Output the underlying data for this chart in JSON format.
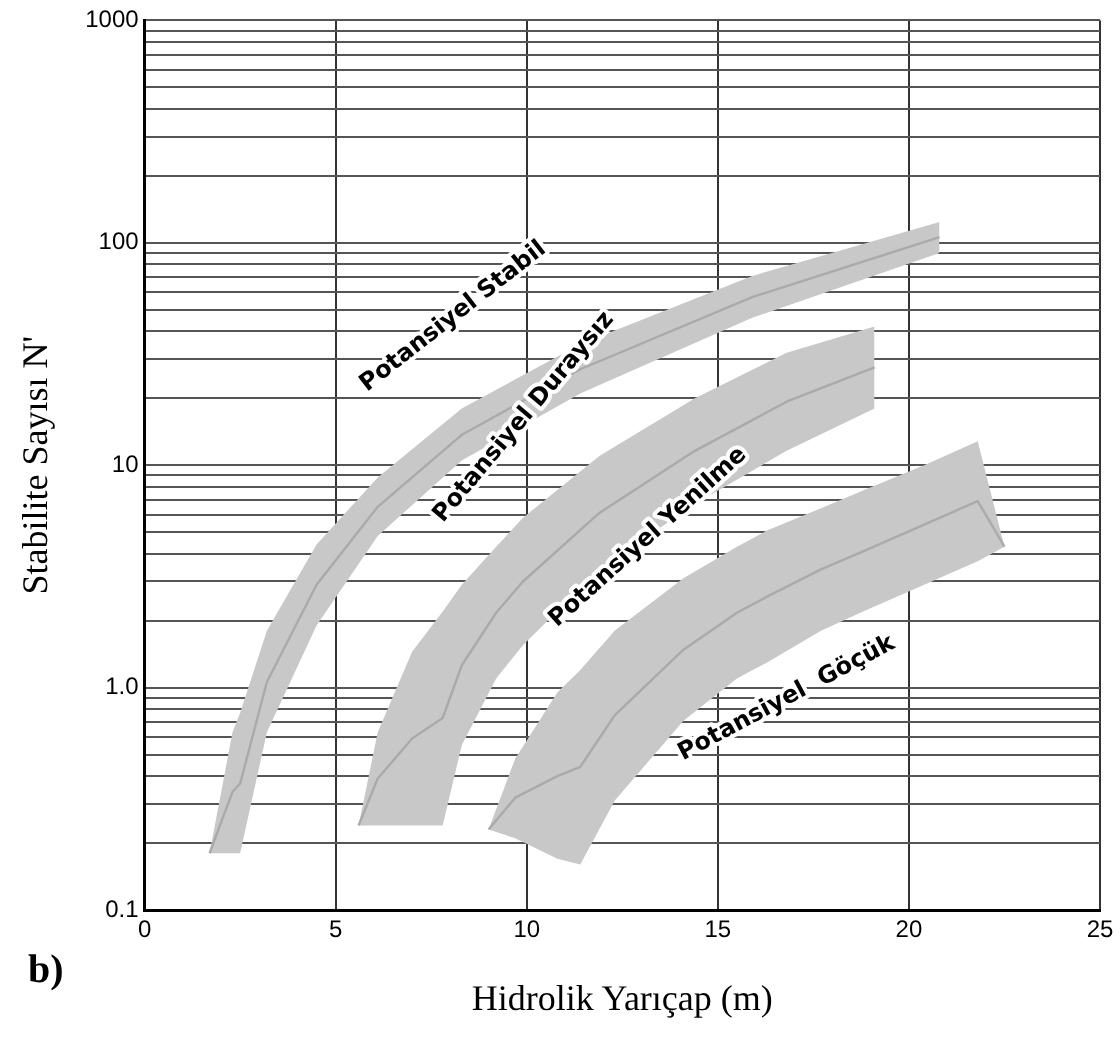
{
  "chart_data": {
    "type": "line",
    "xlabel": "Hidrolik Yarıçap (m)",
    "ylabel": "Stabilite Sayısı N'",
    "xlim": [
      0,
      25
    ],
    "xticks": [
      0,
      5,
      10,
      15,
      20,
      25
    ],
    "ylim": [
      0.1,
      1000
    ],
    "log": true,
    "yticks": [
      0.1,
      {
        "value": 0.2,
        "label": null
      },
      {
        "value": 0.3,
        "label": null
      },
      {
        "value": 0.4,
        "label": null
      },
      {
        "value": 0.5,
        "label": null
      },
      {
        "value": 0.6,
        "label": null
      },
      {
        "value": 0.7,
        "label": null
      },
      {
        "value": 0.8,
        "label": null
      },
      {
        "value": 0.9,
        "label": null
      },
      {
        "value": 1,
        "label": "1.0"
      },
      {
        "value": 2,
        "label": null
      },
      {
        "value": 3,
        "label": null
      },
      {
        "value": 4,
        "label": null
      },
      {
        "value": 5,
        "label": null
      },
      {
        "value": 6,
        "label": null
      },
      {
        "value": 7,
        "label": null
      },
      {
        "value": 8,
        "label": null
      },
      {
        "value": 9,
        "label": null
      },
      10,
      {
        "value": 20,
        "label": null
      },
      {
        "value": 30,
        "label": null
      },
      {
        "value": 40,
        "label": null
      },
      {
        "value": 50,
        "label": null
      },
      {
        "value": 60,
        "label": null
      },
      {
        "value": 70,
        "label": null
      },
      {
        "value": 80,
        "label": null
      },
      {
        "value": 90,
        "label": null
      },
      100,
      {
        "value": 200,
        "label": null
      },
      {
        "value": 300,
        "label": null
      },
      {
        "value": 400,
        "label": null
      },
      {
        "value": 500,
        "label": null
      },
      {
        "value": 600,
        "label": null
      },
      {
        "value": 700,
        "label": null
      },
      {
        "value": 800,
        "label": null
      },
      {
        "value": 900,
        "label": null
      },
      1000
    ],
    "grid": true,
    "legend": false,
    "series": [
      {
        "color": "#aaaaaa",
        "x": [
          1.7,
          2.3,
          2.5,
          3.2,
          4.5,
          6.1,
          8.3,
          11.4,
          15.9,
          20.8
        ],
        "values": [
          0.18,
          0.34,
          0.37,
          1.06,
          2.9,
          6.5,
          13.7,
          27,
          57,
          106
        ],
        "lower": [
          0.18,
          0.18,
          0.18,
          0.63,
          1.9,
          4.8,
          10.5,
          21,
          46,
          90
        ],
        "upper": [
          0.18,
          0.63,
          0.77,
          1.8,
          4.4,
          8.8,
          18,
          35,
          71,
          124
        ]
      },
      {
        "color": "#aaaaaa",
        "x": [
          5.6,
          6.1,
          7.0,
          7.8,
          8.3,
          9.2,
          9.9,
          11.9,
          14.4,
          16.8,
          19.1
        ],
        "values": [
          0.24,
          0.39,
          0.59,
          0.73,
          1.26,
          2.17,
          3.0,
          6.1,
          11.6,
          19.3,
          27.5
        ],
        "lower": [
          0.24,
          0.24,
          0.24,
          0.24,
          0.55,
          1.1,
          1.55,
          3.4,
          6.7,
          11.6,
          18
        ],
        "upper": [
          0.24,
          0.63,
          1.45,
          2.2,
          2.9,
          4.3,
          5.8,
          11,
          20,
          32,
          42
        ]
      },
      {
        "color": "#aaaaaa",
        "x": [
          9.0,
          9.7,
          10.8,
          11.4,
          12.3,
          14.1,
          15.5,
          16.3,
          17.7,
          18.8,
          20.4,
          21.8,
          22.5
        ],
        "values": [
          0.23,
          0.32,
          0.4,
          0.44,
          0.75,
          1.48,
          2.17,
          2.57,
          3.4,
          4.1,
          5.4,
          6.9,
          4.3
        ],
        "lower": [
          0.23,
          0.21,
          0.17,
          0.16,
          0.31,
          0.71,
          1.1,
          1.3,
          1.8,
          2.2,
          2.9,
          3.7,
          4.3
        ],
        "upper": [
          0.23,
          0.48,
          0.95,
          1.2,
          1.8,
          3.1,
          4.3,
          5.1,
          6.4,
          7.7,
          10,
          12.8,
          4.3
        ]
      }
    ],
    "annotations": [
      "Potansiyel Stabil",
      "Potansiyel Duraysız",
      "Potansiyel Yenilme",
      "Potansiyel  Göçük",
      "b)"
    ]
  }
}
